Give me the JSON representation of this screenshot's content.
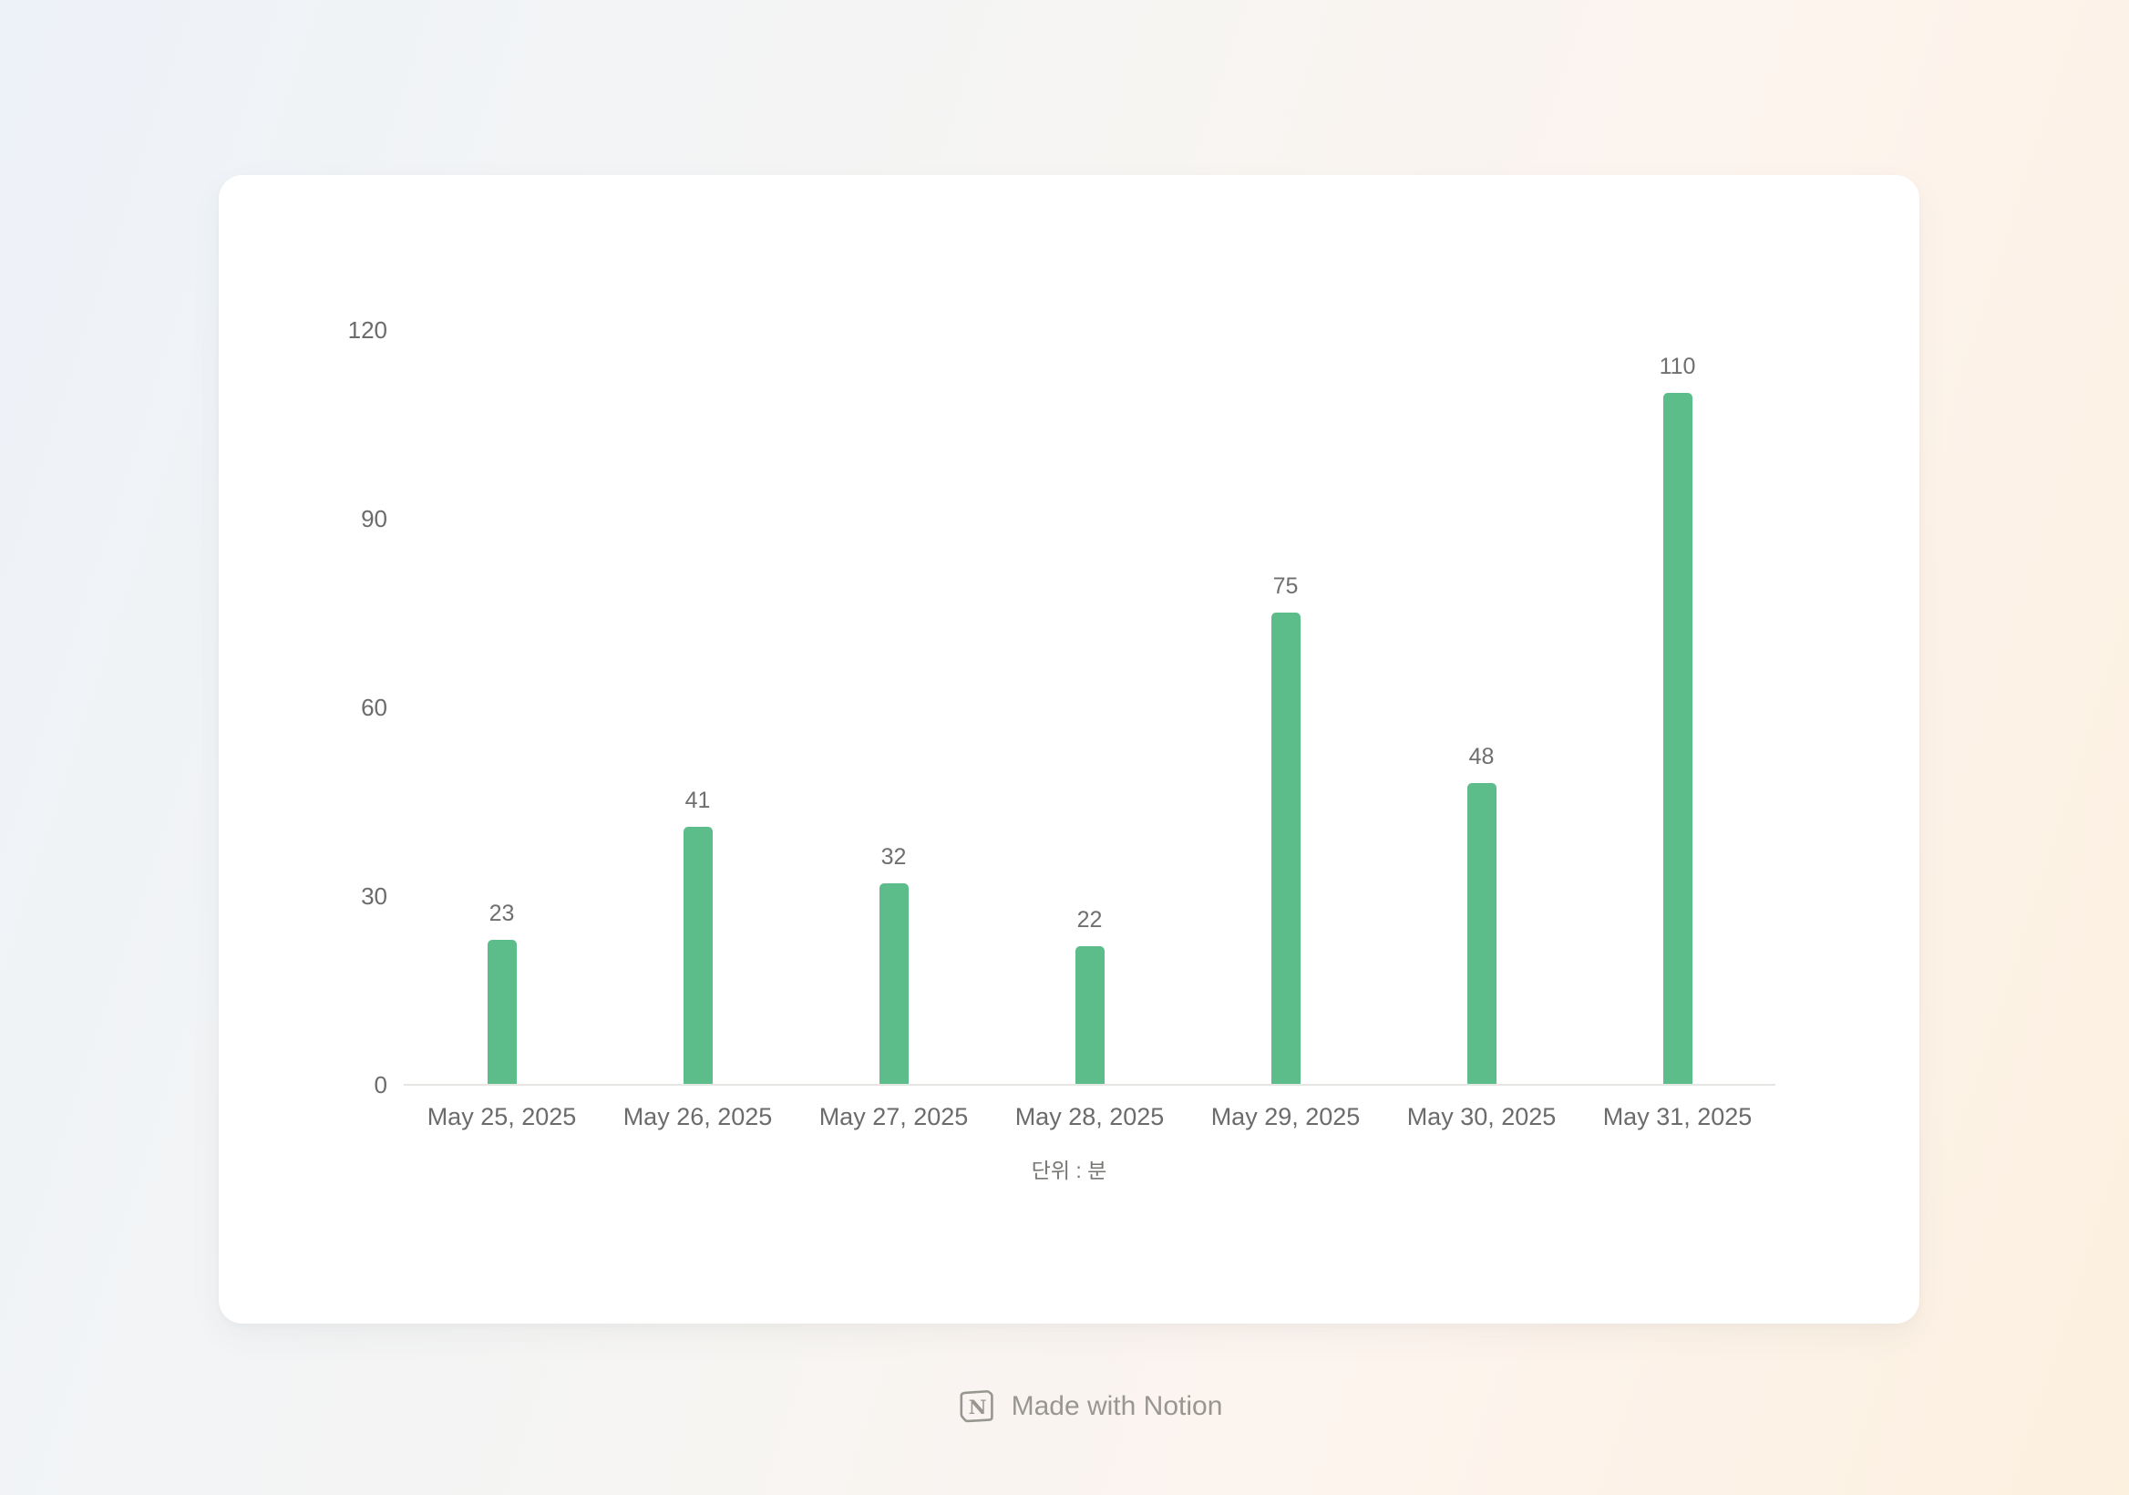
{
  "page": {
    "background_gradient": [
      "#edf2f8",
      "#f6f5f3",
      "#fdf4ee",
      "#fcf0df"
    ]
  },
  "chart_data": {
    "type": "bar",
    "title": "",
    "categories": [
      "May 25, 2025",
      "May 26, 2025",
      "May 27, 2025",
      "May 28, 2025",
      "May 29, 2025",
      "May 30, 2025",
      "May 31, 2025"
    ],
    "values": [
      23,
      41,
      32,
      22,
      75,
      48,
      110
    ],
    "y_ticks": [
      0,
      30,
      60,
      90,
      120
    ],
    "ylim": [
      0,
      120
    ],
    "xlabel": "단위 : 분",
    "ylabel": "",
    "grid": false,
    "legend": "none",
    "value_labels_shown": true,
    "bar_color": "#5cbc8a",
    "value_label_color": "#6f6f6f",
    "tick_label_color": "#6b6b6b",
    "axis_line_color": "#e5e5e2"
  },
  "footer": {
    "icon": "notion-logo-icon",
    "text": "Made with Notion",
    "color": "#98978f"
  }
}
